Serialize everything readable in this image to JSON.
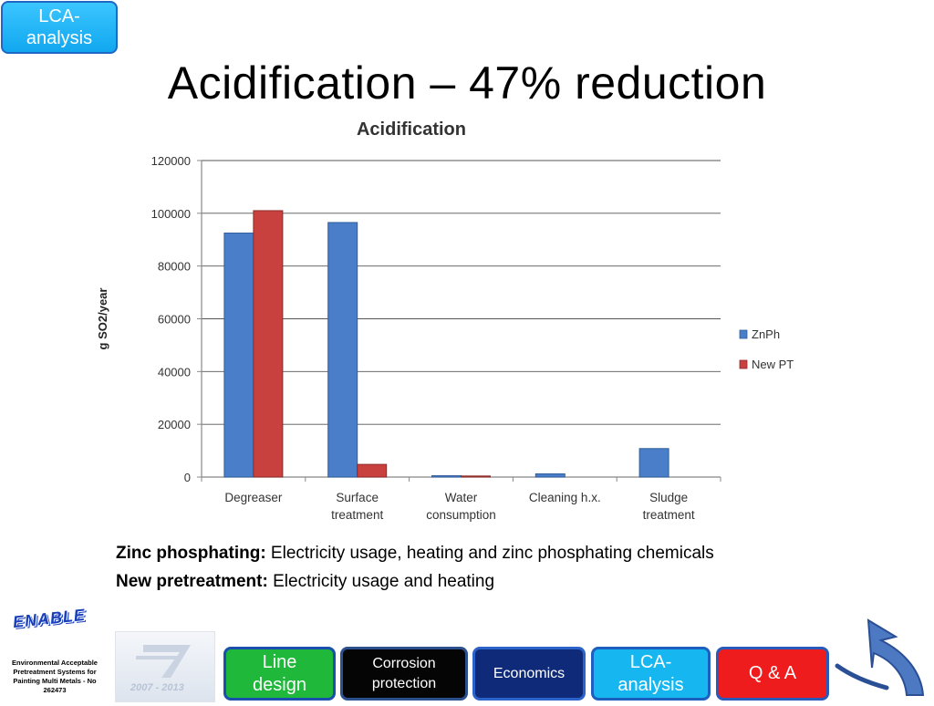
{
  "header": {
    "tag_label": "LCA-\nanalysis",
    "title": "Acidification – 47% reduction"
  },
  "chart_data": {
    "type": "bar",
    "title": "Acidification",
    "xlabel": "",
    "ylabel": "g SO2/year",
    "categories": [
      "Degreaser",
      "Surface\ntreatment",
      "Water\nconsumption",
      "Cleaning h.x.",
      "Sludge\ntreatment"
    ],
    "series": [
      {
        "name": "ZnPh",
        "values": [
          92500,
          96500,
          500,
          1200,
          10800
        ],
        "color": "#4a7ec9"
      },
      {
        "name": "New PT",
        "values": [
          101000,
          4800,
          400,
          0,
          0
        ],
        "color": "#c9413e"
      }
    ],
    "ylim": [
      0,
      120000
    ],
    "yticks": [
      0,
      20000,
      40000,
      60000,
      80000,
      100000,
      120000
    ],
    "grid": true,
    "legend_position": "right"
  },
  "caption": {
    "line1_bold": "Zinc phosphating:",
    "line1_text": " Electricity usage, heating and zinc phosphating chemicals",
    "line2_bold": "New pretreatment:",
    "line2_text": " Electricity usage and heating"
  },
  "footer": {
    "logo_text": "ENABLE",
    "org_text": "Environmental Acceptable Pretreatment Systems for Painting Multi Metals - No 262473",
    "fp7_years": "2007 - 2013"
  },
  "nav": {
    "line_design_1": "Line",
    "line_design_2": "design",
    "corrosion_1": "Corrosion",
    "corrosion_2": "protection",
    "economics": "Economics",
    "lca_1": "LCA-",
    "lca_2": "analysis",
    "qa": "Q & A"
  }
}
